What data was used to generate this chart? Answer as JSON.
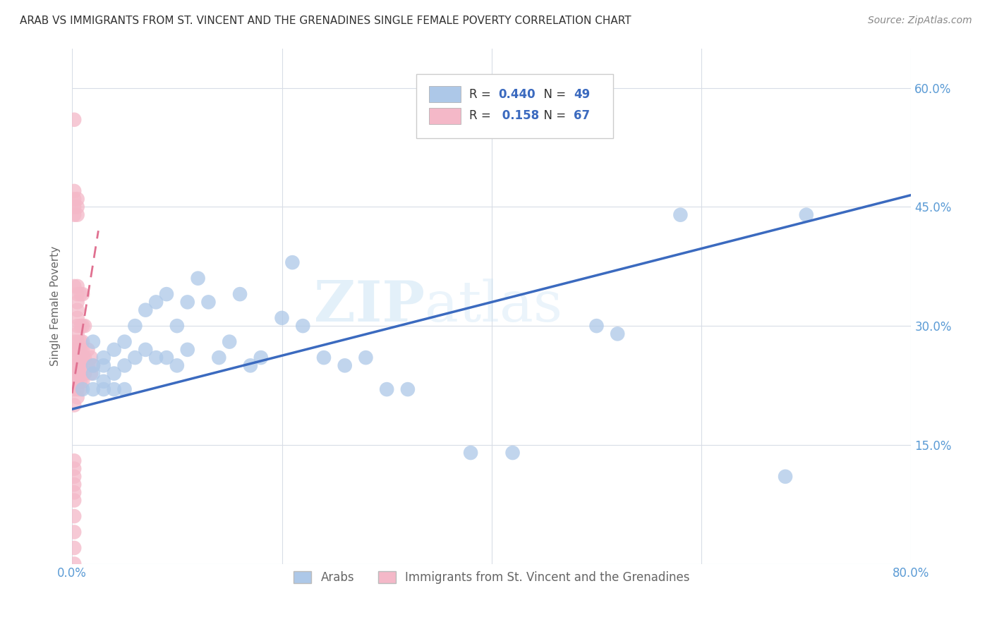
{
  "title": "ARAB VS IMMIGRANTS FROM ST. VINCENT AND THE GRENADINES SINGLE FEMALE POVERTY CORRELATION CHART",
  "source": "Source: ZipAtlas.com",
  "ylabel": "Single Female Poverty",
  "xlim": [
    0.0,
    0.8
  ],
  "ylim": [
    0.0,
    0.65
  ],
  "xtick_positions": [
    0.0,
    0.2,
    0.4,
    0.6,
    0.8
  ],
  "xticklabels": [
    "0.0%",
    "",
    "",
    "",
    "80.0%"
  ],
  "ytick_positions": [
    0.0,
    0.15,
    0.3,
    0.45,
    0.6
  ],
  "right_yticklabels": [
    "",
    "15.0%",
    "30.0%",
    "45.0%",
    "60.0%"
  ],
  "legend_R1": "0.440",
  "legend_N1": "49",
  "legend_R2": "0.158",
  "legend_N2": "67",
  "arab_color": "#adc8e8",
  "svg_color": "#f4b8c8",
  "arab_line_color": "#3b6abf",
  "svg_line_color": "#e07090",
  "watermark_zip": "ZIP",
  "watermark_atlas": "atlas",
  "background_color": "#ffffff",
  "grid_color": "#d8dde6",
  "title_color": "#333333",
  "axis_label_color": "#5b9bd5",
  "arab_scatter_x": [
    0.01,
    0.02,
    0.02,
    0.02,
    0.02,
    0.03,
    0.03,
    0.03,
    0.03,
    0.04,
    0.04,
    0.04,
    0.05,
    0.05,
    0.05,
    0.06,
    0.06,
    0.07,
    0.07,
    0.08,
    0.08,
    0.09,
    0.09,
    0.1,
    0.1,
    0.11,
    0.11,
    0.12,
    0.13,
    0.14,
    0.15,
    0.16,
    0.17,
    0.18,
    0.2,
    0.21,
    0.22,
    0.24,
    0.26,
    0.28,
    0.3,
    0.32,
    0.38,
    0.42,
    0.5,
    0.52,
    0.58,
    0.68,
    0.7
  ],
  "arab_scatter_y": [
    0.22,
    0.24,
    0.22,
    0.25,
    0.28,
    0.23,
    0.26,
    0.22,
    0.25,
    0.27,
    0.24,
    0.22,
    0.28,
    0.25,
    0.22,
    0.3,
    0.26,
    0.32,
    0.27,
    0.33,
    0.26,
    0.34,
    0.26,
    0.3,
    0.25,
    0.33,
    0.27,
    0.36,
    0.33,
    0.26,
    0.28,
    0.34,
    0.25,
    0.26,
    0.31,
    0.38,
    0.3,
    0.26,
    0.25,
    0.26,
    0.22,
    0.22,
    0.14,
    0.14,
    0.3,
    0.29,
    0.44,
    0.11,
    0.44
  ],
  "svg_scatter_x": [
    0.002,
    0.002,
    0.002,
    0.002,
    0.002,
    0.002,
    0.002,
    0.002,
    0.002,
    0.002,
    0.002,
    0.002,
    0.002,
    0.002,
    0.002,
    0.002,
    0.002,
    0.002,
    0.002,
    0.002,
    0.002,
    0.002,
    0.002,
    0.002,
    0.005,
    0.005,
    0.005,
    0.005,
    0.005,
    0.005,
    0.005,
    0.005,
    0.005,
    0.005,
    0.005,
    0.005,
    0.005,
    0.005,
    0.005,
    0.005,
    0.005,
    0.005,
    0.008,
    0.008,
    0.008,
    0.008,
    0.008,
    0.008,
    0.008,
    0.008,
    0.008,
    0.01,
    0.01,
    0.01,
    0.01,
    0.01,
    0.01,
    0.01,
    0.01,
    0.012,
    0.012,
    0.012,
    0.015,
    0.015,
    0.018,
    0.018,
    0.02
  ],
  "svg_scatter_y": [
    0.0,
    0.02,
    0.04,
    0.06,
    0.08,
    0.09,
    0.1,
    0.11,
    0.12,
    0.13,
    0.2,
    0.22,
    0.23,
    0.24,
    0.25,
    0.26,
    0.27,
    0.28,
    0.35,
    0.44,
    0.45,
    0.46,
    0.47,
    0.56,
    0.21,
    0.22,
    0.23,
    0.24,
    0.25,
    0.26,
    0.27,
    0.28,
    0.29,
    0.3,
    0.31,
    0.32,
    0.33,
    0.34,
    0.35,
    0.44,
    0.45,
    0.46,
    0.22,
    0.23,
    0.24,
    0.25,
    0.26,
    0.27,
    0.28,
    0.3,
    0.34,
    0.23,
    0.24,
    0.25,
    0.26,
    0.27,
    0.28,
    0.3,
    0.34,
    0.24,
    0.26,
    0.3,
    0.25,
    0.27,
    0.24,
    0.26,
    0.25
  ],
  "blue_line_x0": 0.0,
  "blue_line_y0": 0.195,
  "blue_line_x1": 0.8,
  "blue_line_y1": 0.465,
  "pink_line_x0": 0.0,
  "pink_line_y0": 0.215,
  "pink_line_x1": 0.025,
  "pink_line_y1": 0.42
}
